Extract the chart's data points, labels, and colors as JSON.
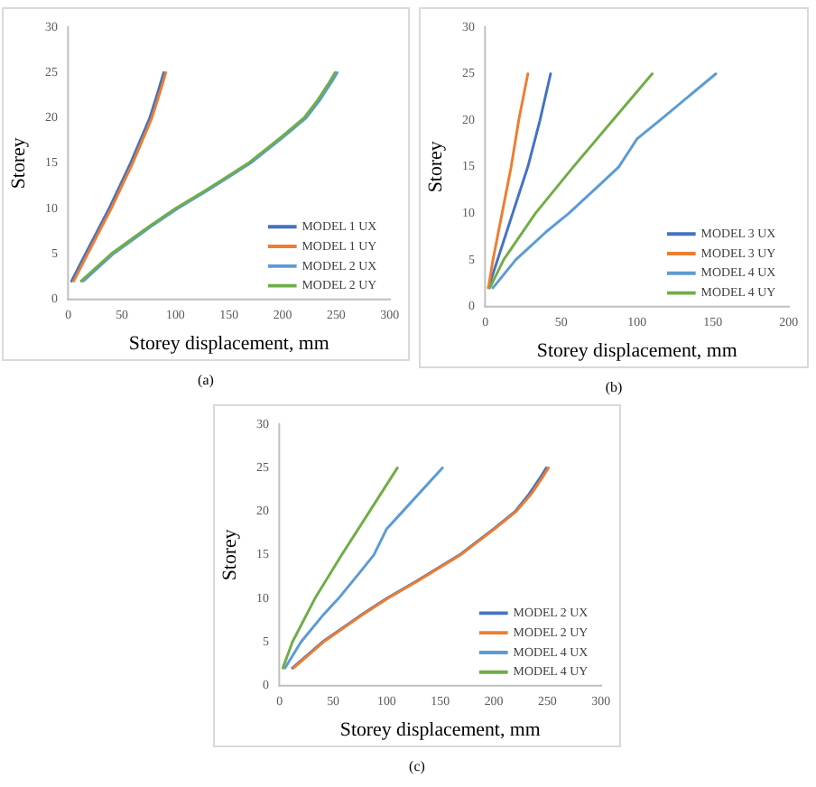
{
  "chart_data": [
    {
      "type": "line",
      "xlabel": "Storey displacement, mm",
      "ylabel": "Storey",
      "xlim": [
        0,
        300
      ],
      "xticks": [
        0,
        50,
        100,
        150,
        200,
        250,
        300
      ],
      "ylim": [
        0,
        30
      ],
      "yticks": [
        0,
        5,
        10,
        15,
        20,
        25,
        30
      ],
      "grid": false,
      "legend": "bottom right",
      "marker": "none",
      "annotations": [
        "(a)"
      ],
      "series": [
        {
          "name": "MODEL 1 UX",
          "color": "#4472c4",
          "x": [
            3,
            16,
            38,
            58,
            76,
            84,
            89
          ],
          "values": [
            2,
            5,
            10,
            15,
            20,
            23,
            25
          ]
        },
        {
          "name": "MODEL 1 UY",
          "color": "#ed7d31",
          "x": [
            5,
            18,
            40,
            60,
            78,
            86,
            91
          ],
          "values": [
            2,
            5,
            10,
            15,
            20,
            23,
            25
          ]
        },
        {
          "name": "MODEL 2 UX",
          "color": "#5b9bd5",
          "x": [
            14,
            42,
            77,
            102,
            130,
            170,
            202,
            222,
            235,
            246,
            251
          ],
          "values": [
            2,
            5,
            8,
            10,
            12,
            15,
            18,
            20,
            22,
            24,
            25
          ]
        },
        {
          "name": "MODEL 2 UY",
          "color": "#70ad47",
          "x": [
            12,
            40,
            75,
            100,
            128,
            168,
            200,
            220,
            233,
            244,
            249
          ],
          "values": [
            2,
            5,
            8,
            10,
            12,
            15,
            18,
            20,
            22,
            24,
            25
          ]
        }
      ]
    },
    {
      "type": "line",
      "xlabel": "Storey displacement, mm",
      "ylabel": "Storey",
      "xlim": [
        0,
        200
      ],
      "xticks": [
        0,
        50,
        100,
        150,
        200
      ],
      "ylim": [
        0,
        30
      ],
      "yticks": [
        0,
        5,
        10,
        15,
        20,
        25,
        30
      ],
      "grid": false,
      "legend": "bottom right",
      "marker": "none",
      "annotations": [
        "(b)"
      ],
      "series": [
        {
          "name": "MODEL 3 UX",
          "color": "#4472c4",
          "x": [
            2,
            8,
            18,
            28,
            36,
            43
          ],
          "values": [
            2,
            5,
            10,
            15,
            20,
            25
          ]
        },
        {
          "name": "MODEL 3 UY",
          "color": "#ed7d31",
          "x": [
            2,
            5,
            11,
            17,
            22,
            28
          ],
          "values": [
            2,
            5,
            10,
            15,
            20,
            25
          ]
        },
        {
          "name": "MODEL 4 UX",
          "color": "#5b9bd5",
          "x": [
            5,
            20,
            40,
            55,
            75,
            88,
            96,
            100,
            115,
            152
          ],
          "values": [
            2,
            5,
            8,
            10,
            13,
            15,
            17,
            18,
            20,
            25
          ]
        },
        {
          "name": "MODEL 4 UY",
          "color": "#70ad47",
          "x": [
            3,
            12,
            33,
            58,
            84,
            110
          ],
          "values": [
            2,
            5,
            10,
            15,
            20,
            25
          ]
        }
      ]
    },
    {
      "type": "line",
      "xlabel": "Storey displacement, mm",
      "ylabel": "Storey",
      "xlim": [
        0,
        300
      ],
      "xticks": [
        0,
        50,
        100,
        150,
        200,
        250,
        300
      ],
      "ylim": [
        0,
        30
      ],
      "yticks": [
        0,
        5,
        10,
        15,
        20,
        25,
        30
      ],
      "grid": false,
      "legend": "bottom right",
      "marker": "none",
      "annotations": [
        "(c)"
      ],
      "series": [
        {
          "name": "MODEL 2 UX",
          "color": "#4472c4",
          "x": [
            12,
            40,
            75,
            100,
            128,
            168,
            200,
            220,
            233,
            244,
            249
          ],
          "values": [
            2,
            5,
            8,
            10,
            12,
            15,
            18,
            20,
            22,
            24,
            25
          ]
        },
        {
          "name": "MODEL 2 UY",
          "color": "#ed7d31",
          "x": [
            13,
            41,
            76,
            101,
            129,
            169,
            201,
            221,
            235,
            246,
            251
          ],
          "values": [
            2,
            5,
            8,
            10,
            12,
            15,
            18,
            20,
            22,
            24,
            25
          ]
        },
        {
          "name": "MODEL 4 UX",
          "color": "#5b9bd5",
          "x": [
            5,
            20,
            40,
            55,
            75,
            88,
            96,
            100,
            115,
            152
          ],
          "values": [
            2,
            5,
            8,
            10,
            13,
            15,
            17,
            18,
            20,
            25
          ]
        },
        {
          "name": "MODEL 4 UY",
          "color": "#70ad47",
          "x": [
            3,
            12,
            33,
            58,
            84,
            110
          ],
          "values": [
            2,
            5,
            10,
            15,
            20,
            25
          ]
        }
      ]
    }
  ]
}
